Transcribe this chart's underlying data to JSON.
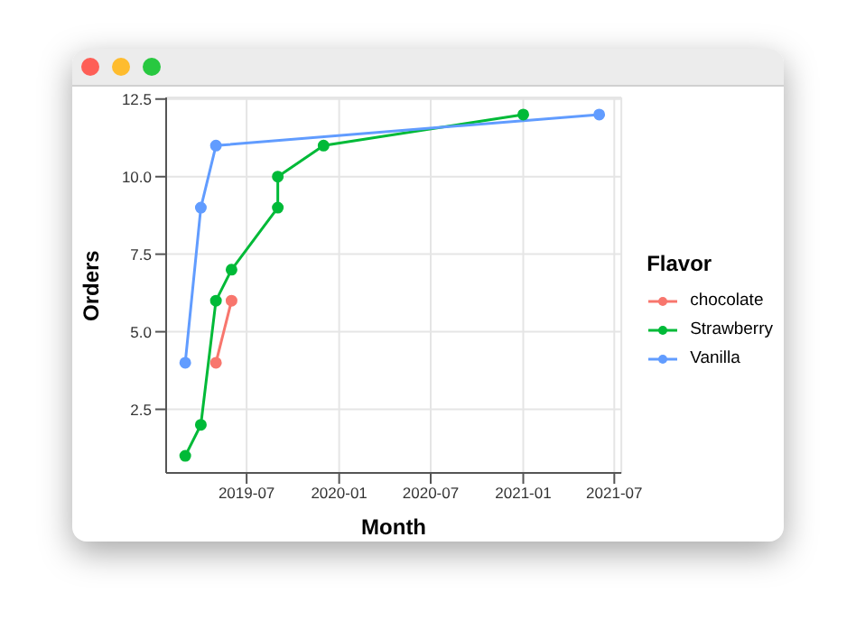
{
  "chart_data": {
    "type": "line",
    "xlabel": "Month",
    "ylabel": "Orders",
    "legend_title": "Flavor",
    "series": [
      {
        "name": "chocolate",
        "color": "#f8766d",
        "x": [
          "2019-05",
          "2019-06"
        ],
        "values": [
          4,
          6
        ]
      },
      {
        "name": "Strawberry",
        "color": "#00ba38",
        "x": [
          "2019-03",
          "2019-04",
          "2019-05",
          "2019-06",
          "2019-09",
          "2019-09",
          "2019-12",
          "2021-01"
        ],
        "values": [
          1,
          2,
          6,
          7,
          9,
          10,
          11,
          12
        ]
      },
      {
        "name": "Vanilla",
        "color": "#619cff",
        "x": [
          "2019-03",
          "2019-04",
          "2019-05",
          "2021-06"
        ],
        "values": [
          4,
          9,
          11,
          12
        ]
      }
    ],
    "xlim": [
      "2019-01-22",
      "2021-07-15"
    ],
    "xticks": [
      "2019-07",
      "2020-01",
      "2020-07",
      "2021-01",
      "2021-07"
    ],
    "ylim": [
      0.45,
      12.55
    ],
    "yticks": [
      {
        "value": 2.5,
        "label": "2.5"
      },
      {
        "value": 5,
        "label": "5.0"
      },
      {
        "value": 7.5,
        "label": "7.5"
      },
      {
        "value": 10,
        "label": "10.0"
      },
      {
        "value": 12.5,
        "label": "12.5"
      }
    ],
    "grid": true,
    "legend": "right",
    "marker": "circle",
    "line_style": "solid"
  }
}
